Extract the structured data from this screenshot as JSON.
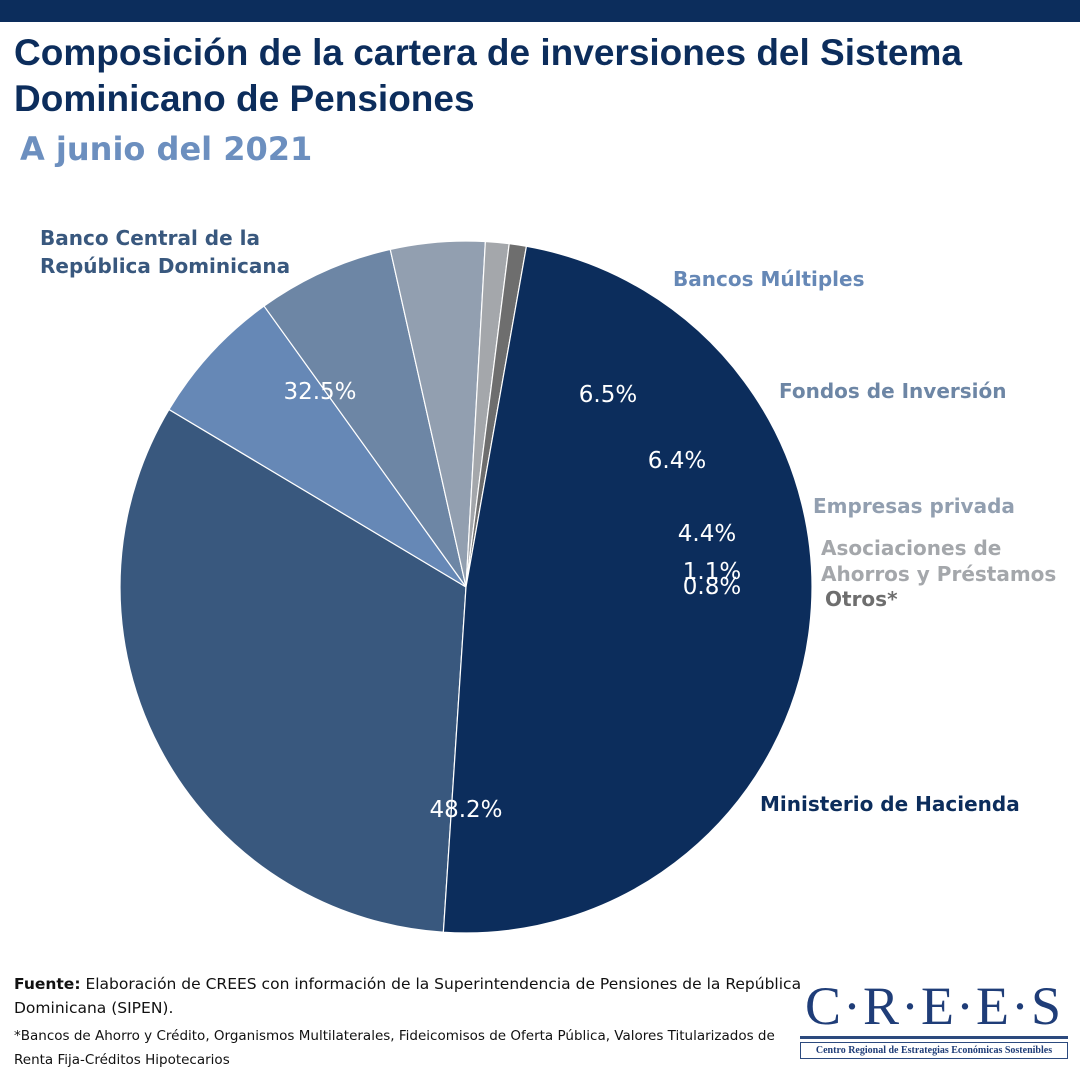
{
  "title": "Composición de la cartera de inversiones del Sistema Dominicano de Pensiones",
  "subtitle": "A junio del 2021",
  "chart_data": {
    "type": "pie",
    "title": "Composición de la cartera de inversiones del Sistema Dominicano de Pensiones",
    "subtitle": "A junio del 2021",
    "unit": "%",
    "slices": [
      {
        "name": "Banco Central de la República Dominicana",
        "label_lines": [
          "Banco Central de la",
          "República Dominicana"
        ],
        "value": 32.5,
        "value_label": "32.5%",
        "color": "#39587e",
        "label_color": "#39587e"
      },
      {
        "name": "Bancos Múltiples",
        "label_lines": [
          "Bancos Múltiples"
        ],
        "value": 6.5,
        "value_label": "6.5%",
        "color": "#6688b6",
        "label_color": "#6688b6"
      },
      {
        "name": "Fondos de Inversión",
        "label_lines": [
          "Fondos de Inversión"
        ],
        "value": 6.4,
        "value_label": "6.4%",
        "color": "#6d86a5",
        "label_color": "#6d86a5"
      },
      {
        "name": "Empresas privada",
        "label_lines": [
          "Empresas privada"
        ],
        "value": 4.4,
        "value_label": "4.4%",
        "color": "#929fb0",
        "label_color": "#929fb0"
      },
      {
        "name": "Asociaciones de Ahorros y Préstamos",
        "label_lines": [
          "Asociaciones de",
          "Ahorros y Préstamos"
        ],
        "value": 1.1,
        "value_label": "1.1%",
        "color": "#a4a7ab",
        "label_color": "#a4a7ab"
      },
      {
        "name": "Otros*",
        "label_lines": [
          "Otros*"
        ],
        "value": 0.8,
        "value_label": "0.8%",
        "color": "#6e6e6e",
        "label_color": "#6e6e6e"
      },
      {
        "name": "Ministerio de Hacienda",
        "label_lines": [
          "Ministerio de Hacienda"
        ],
        "value": 48.2,
        "value_label": "48.2%",
        "color": "#0c2d5c",
        "label_color": "#0c2d5c"
      }
    ]
  },
  "footer": {
    "fuente_label": "Fuente:",
    "fuente_text": " Elaboración de CREES con información de la Superintendencia de Pensiones de la República Dominicana (SIPEN).",
    "nota": "*Bancos de Ahorro y Crédito, Organismos Multilaterales, Fideicomisos de Oferta Pública, Valores Titularizados de Renta Fija-Créditos Hipotecarios"
  },
  "logo": {
    "text": "C·R·E·E·S",
    "subtitle": "Centro Regional de Estrategias Económicas Sostenibles"
  }
}
